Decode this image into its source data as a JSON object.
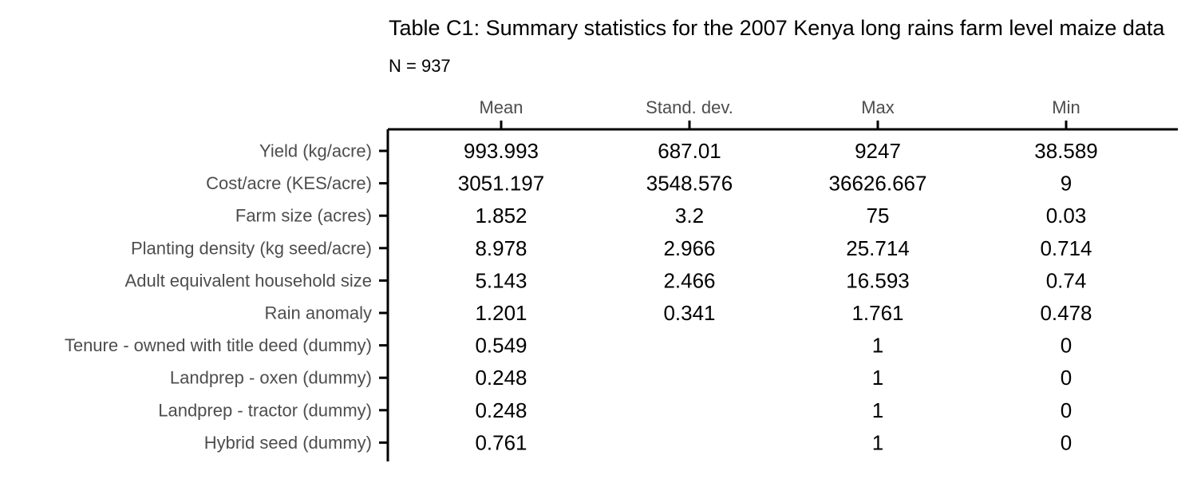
{
  "chart_data": {
    "type": "table",
    "title": "Table C1: Summary statistics for the 2007 Kenya long rains farm level maize data",
    "subtitle": "N = 937",
    "columns": [
      "Mean",
      "Stand. dev.",
      "Max",
      "Min"
    ],
    "rows": [
      {
        "label": "Yield (kg/acre)",
        "values": [
          "993.993",
          "687.01",
          "9247",
          "38.589"
        ]
      },
      {
        "label": "Cost/acre (KES/acre)",
        "values": [
          "3051.197",
          "3548.576",
          "36626.667",
          "9"
        ]
      },
      {
        "label": "Farm size (acres)",
        "values": [
          "1.852",
          "3.2",
          "75",
          "0.03"
        ]
      },
      {
        "label": "Planting density (kg seed/acre)",
        "values": [
          "8.978",
          "2.966",
          "25.714",
          "0.714"
        ]
      },
      {
        "label": "Adult equivalent household size",
        "values": [
          "5.143",
          "2.466",
          "16.593",
          "0.74"
        ]
      },
      {
        "label": "Rain anomaly",
        "values": [
          "1.201",
          "0.341",
          "1.761",
          "0.478"
        ]
      },
      {
        "label": "Tenure - owned with title deed (dummy)",
        "values": [
          "0.549",
          "",
          "1",
          "0"
        ]
      },
      {
        "label": "Landprep - oxen (dummy)",
        "values": [
          "0.248",
          "",
          "1",
          "0"
        ]
      },
      {
        "label": "Landprep - tractor (dummy)",
        "values": [
          "0.248",
          "",
          "1",
          "0"
        ]
      },
      {
        "label": "Hybrid seed (dummy)",
        "values": [
          "0.761",
          "",
          "1",
          "0"
        ]
      }
    ]
  }
}
